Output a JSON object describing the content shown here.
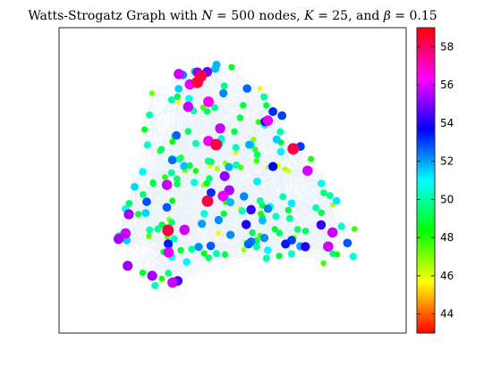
{
  "chart_data": {
    "type": "scatter",
    "title": "Watts-Strogatz Graph with N = 500 nodes, K = 25, and β = 0.15",
    "title_parts": {
      "prefix": "Watts-Strogatz Graph with ",
      "n_var": "N",
      "n_val": " = 500 nodes, ",
      "k_var": "K",
      "k_val": " = 25, and ",
      "b_var": "β",
      "b_val": " = 0.15"
    },
    "graph": {
      "N": 500,
      "K": 25,
      "beta": 0.15,
      "node_color_encodes": "node degree",
      "edge_color": "#5b9bd5",
      "edge_opacity": 0.12,
      "axes_ticks_visible": false
    },
    "colorbar": {
      "colormap": "hsv",
      "range": [
        43,
        59
      ],
      "ticks": [
        44,
        46,
        48,
        50,
        52,
        54,
        56,
        58
      ],
      "tick_labels": [
        "44",
        "46",
        "48",
        "50",
        "52",
        "54",
        "56",
        "58"
      ]
    }
  }
}
